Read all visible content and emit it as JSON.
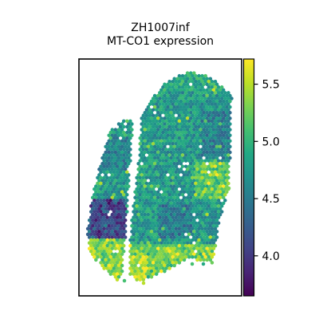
{
  "chart_data": {
    "type": "scatter",
    "subtype": "spatial-transcriptomics-hex-spots",
    "title_line1": "ZH1007inf",
    "title_line2": "MT-CO1 expression",
    "xlabel": "",
    "ylabel": "",
    "colormap": "viridis",
    "colorbar": {
      "label": "",
      "vmin": 3.65,
      "vmax": 5.72,
      "ticks": [
        4.0,
        4.5,
        5.0,
        5.5
      ],
      "tick_labels": [
        "4.0",
        "4.5",
        "5.0",
        "5.5"
      ]
    },
    "grid": false,
    "value_summary": {
      "typical_range": [
        4.4,
        5.2
      ],
      "low_region": "left lobe, lower-middle (values ~3.8-4.2)",
      "high_region": "bottom edges and right margin (values ~5.3-5.6)"
    }
  }
}
